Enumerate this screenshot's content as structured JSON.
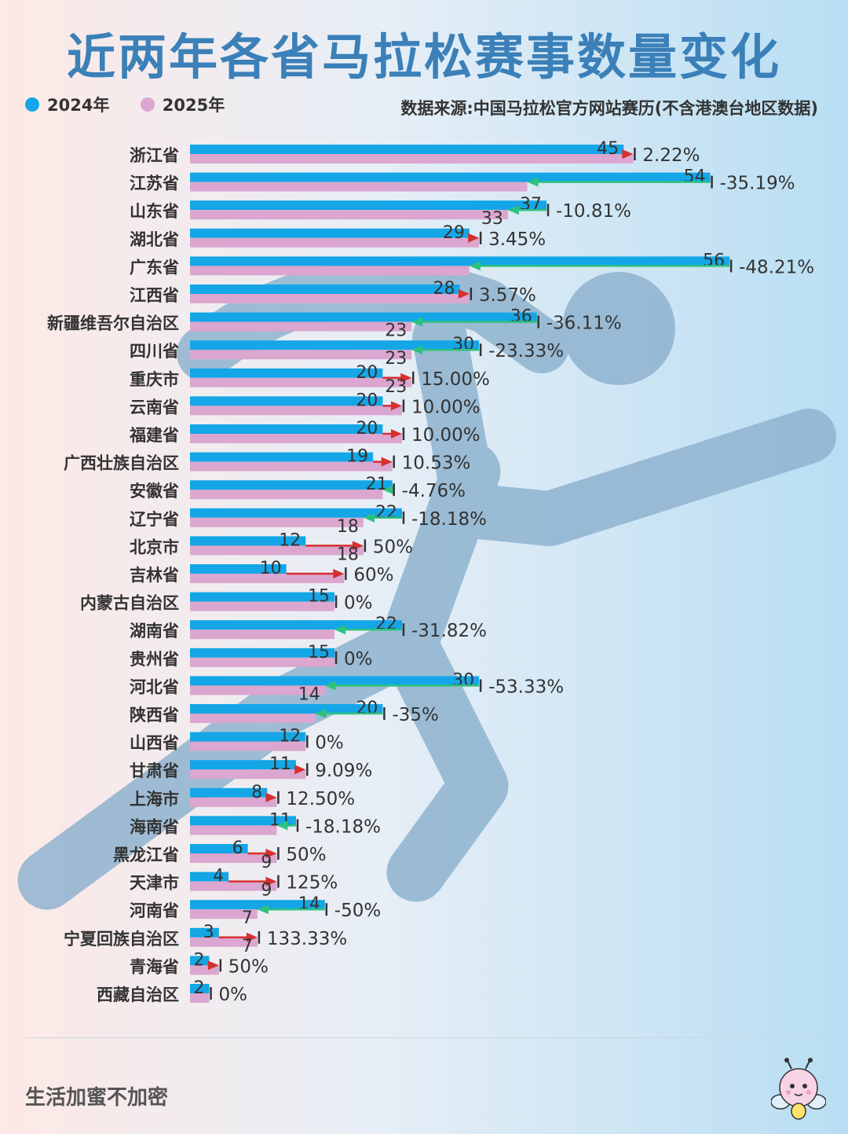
{
  "title": "近两年各省马拉松赛事数量变化",
  "legend": [
    {
      "label": "2024年",
      "color": "#14a6e6"
    },
    {
      "label": "2025年",
      "color": "#dba6cf"
    }
  ],
  "source": "数据来源:中国马拉松官方网站赛历(不含港澳台地区数据)",
  "footer": "生活加蜜不加密",
  "colors": {
    "increase_arrow": "#d62f2f",
    "decrease_arrow": "#2ec27e",
    "end_tick": "#333333",
    "runner": "#8fb3cf"
  },
  "chart_data": {
    "type": "bar",
    "orientation": "horizontal",
    "categories": [
      "浙江省",
      "江苏省",
      "山东省",
      "湖北省",
      "广东省",
      "江西省",
      "新疆维吾尔自治区",
      "四川省",
      "重庆市",
      "云南省",
      "福建省",
      "广西壮族自治区",
      "安徽省",
      "辽宁省",
      "北京市",
      "吉林省",
      "内蒙古自治区",
      "湖南省",
      "贵州省",
      "河北省",
      "陕西省",
      "山西省",
      "甘肃省",
      "上海市",
      "海南省",
      "黑龙江省",
      "天津市",
      "河南省",
      "宁夏回族自治区",
      "青海省",
      "西藏自治区"
    ],
    "series": [
      {
        "name": "2024年",
        "values": [
          45,
          54,
          37,
          29,
          56,
          28,
          36,
          30,
          20,
          20,
          20,
          19,
          21,
          22,
          12,
          10,
          15,
          22,
          15,
          30,
          20,
          12,
          11,
          8,
          11,
          6,
          4,
          14,
          3,
          2,
          2
        ]
      },
      {
        "name": "2025年",
        "values": [
          46,
          35,
          33,
          30,
          29,
          29,
          23,
          23,
          23,
          22,
          22,
          21,
          20,
          18,
          18,
          16,
          15,
          15,
          15,
          14,
          13,
          12,
          12,
          9,
          9,
          9,
          9,
          7,
          7,
          3,
          2
        ]
      }
    ],
    "changes": [
      "2.22%",
      "-35.19%",
      "-10.81%",
      "3.45%",
      "-48.21%",
      "3.57%",
      "-36.11%",
      "-23.33%",
      "15.00%",
      "10.00%",
      "10.00%",
      "10.53%",
      "-4.76%",
      "-18.18%",
      "50%",
      "60%",
      "0%",
      "-31.82%",
      "0%",
      "-53.33%",
      "-35%",
      "0%",
      "9.09%",
      "12.50%",
      "-18.18%",
      "50%",
      "125%",
      "-50%",
      "133.33%",
      "50%",
      "0%"
    ],
    "label_2025": [
      "",
      "",
      "33",
      "",
      "",
      "",
      "23",
      "23",
      "23",
      "",
      "",
      "",
      "",
      "18",
      "18",
      "",
      "",
      "",
      "",
      "14",
      "",
      "",
      "",
      "",
      "",
      "9",
      "9",
      "7",
      "7",
      "",
      ""
    ],
    "xlim": [
      0,
      56
    ],
    "grid": false,
    "legend": "top-left"
  }
}
